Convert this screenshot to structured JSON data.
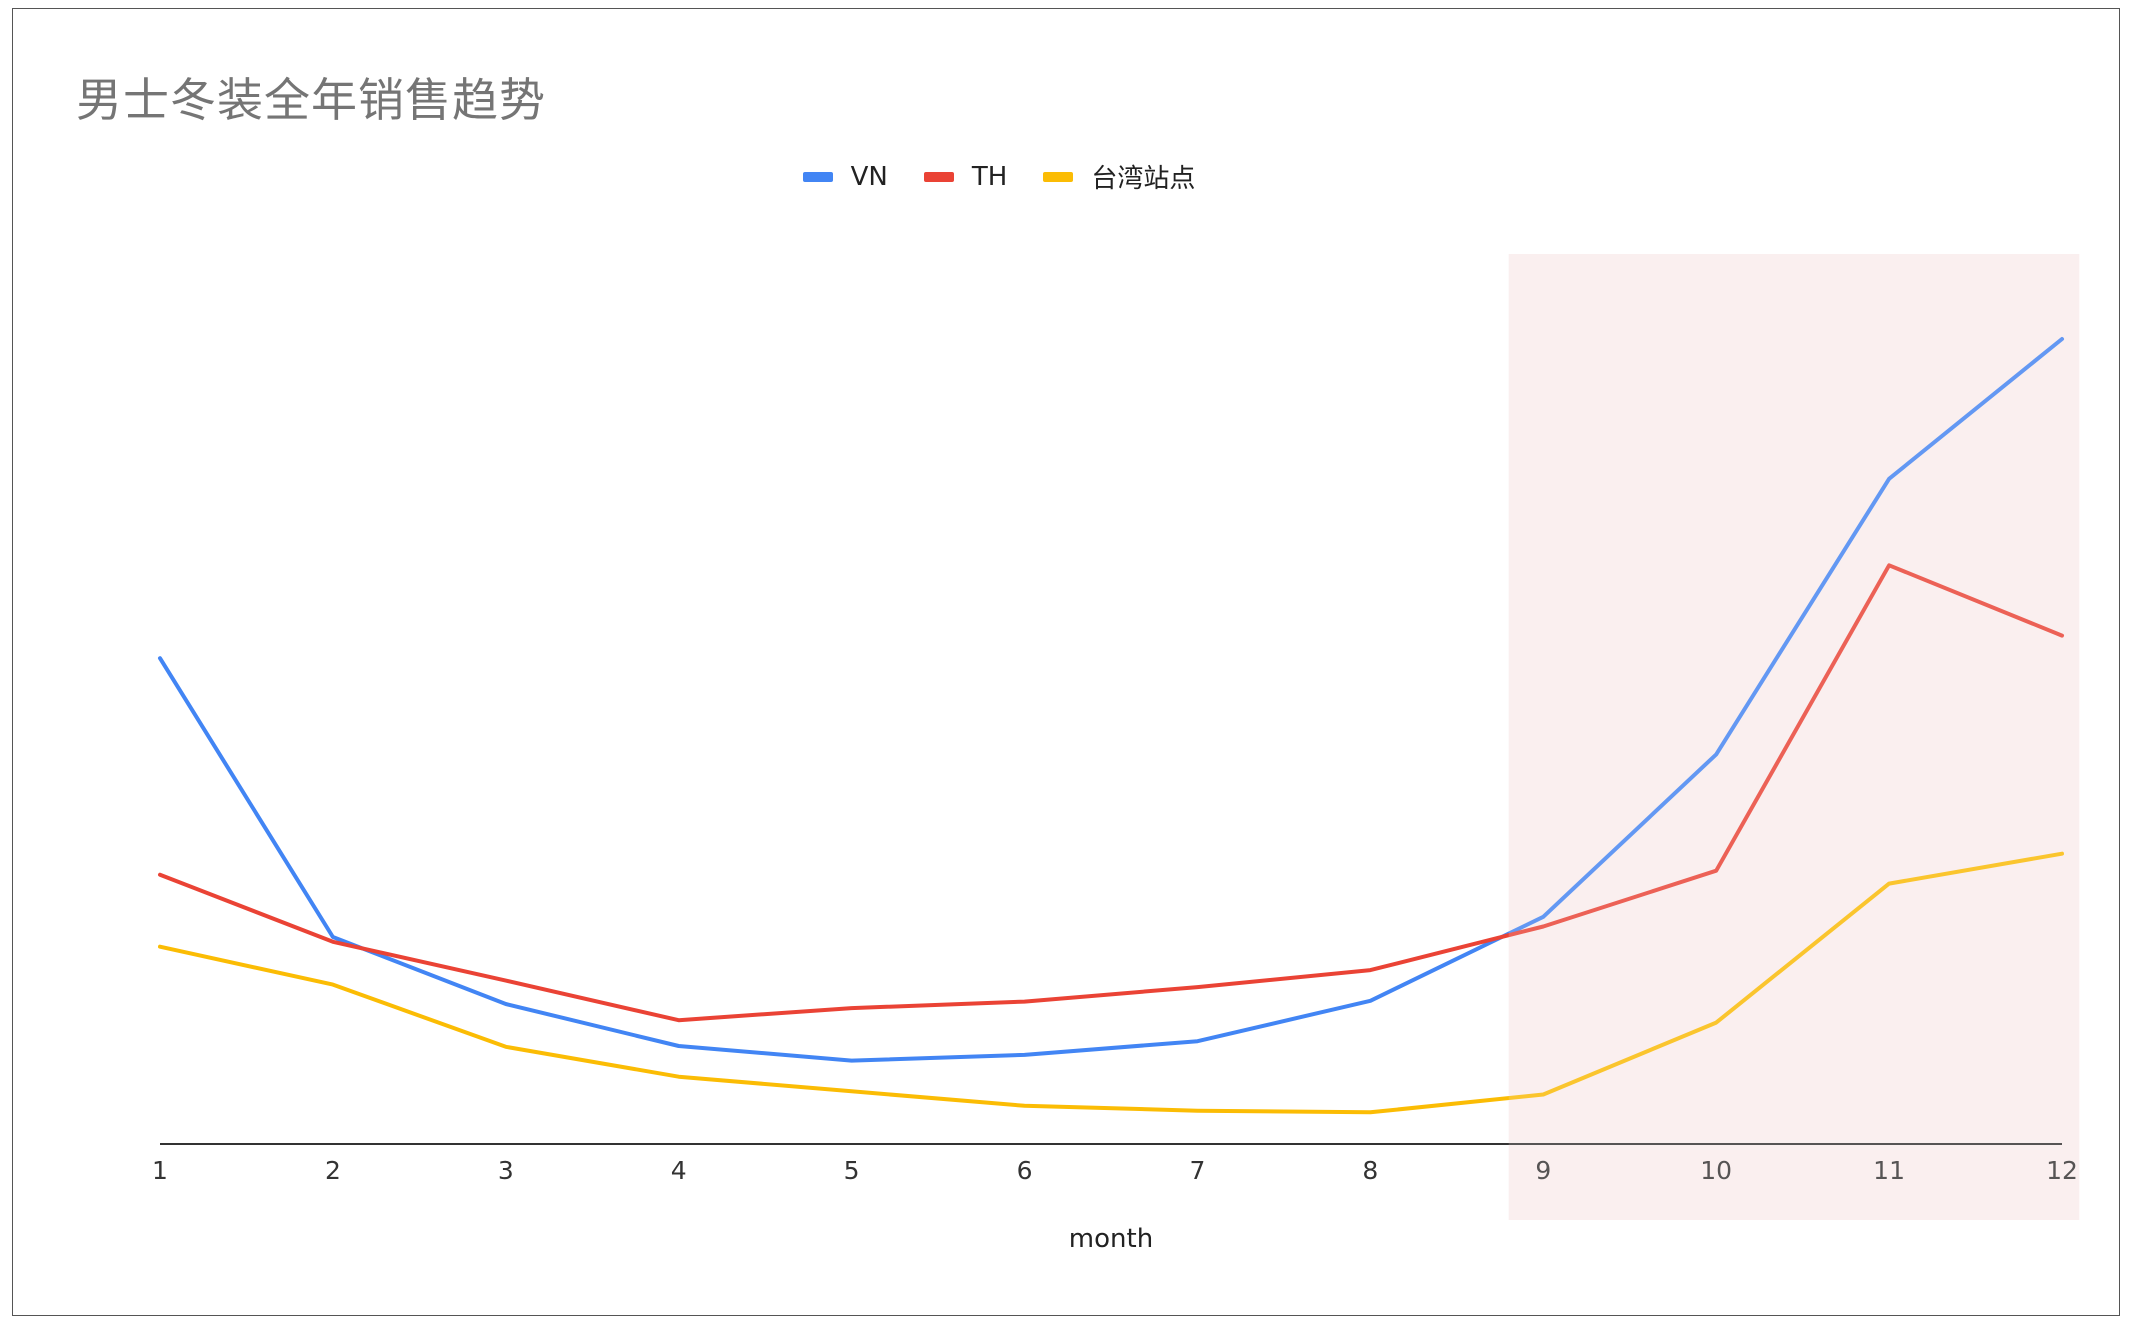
{
  "chart_data": {
    "type": "line",
    "title": "男士冬装全年销售趋势",
    "xlabel": "month",
    "ylabel": "",
    "categories": [
      "1",
      "2",
      "3",
      "4",
      "5",
      "6",
      "7",
      "8",
      "9",
      "10",
      "11",
      "12"
    ],
    "x": [
      1,
      2,
      3,
      4,
      5,
      6,
      7,
      8,
      9,
      10,
      11,
      12
    ],
    "ylim": [
      0,
      100
    ],
    "grid": false,
    "legend_position": "top",
    "series": [
      {
        "name": "VN",
        "color": "#4285F4",
        "values": [
          60.0,
          25.5,
          17.2,
          12.0,
          10.2,
          10.9,
          12.6,
          17.6,
          28.0,
          48.1,
          82.2,
          99.5
        ]
      },
      {
        "name": "TH",
        "color": "#EA4335",
        "values": [
          33.2,
          24.9,
          20.1,
          15.2,
          16.7,
          17.5,
          19.3,
          21.4,
          26.8,
          33.7,
          71.5,
          62.8
        ]
      },
      {
        "name": "台湾站点",
        "color": "#FBBC04",
        "values": [
          24.3,
          19.6,
          11.9,
          8.2,
          6.4,
          4.6,
          4.0,
          3.8,
          6.0,
          14.9,
          32.1,
          35.8
        ]
      }
    ],
    "highlight": {
      "from": 8.8,
      "to": 12.1,
      "color": "#FBEFEF"
    }
  }
}
